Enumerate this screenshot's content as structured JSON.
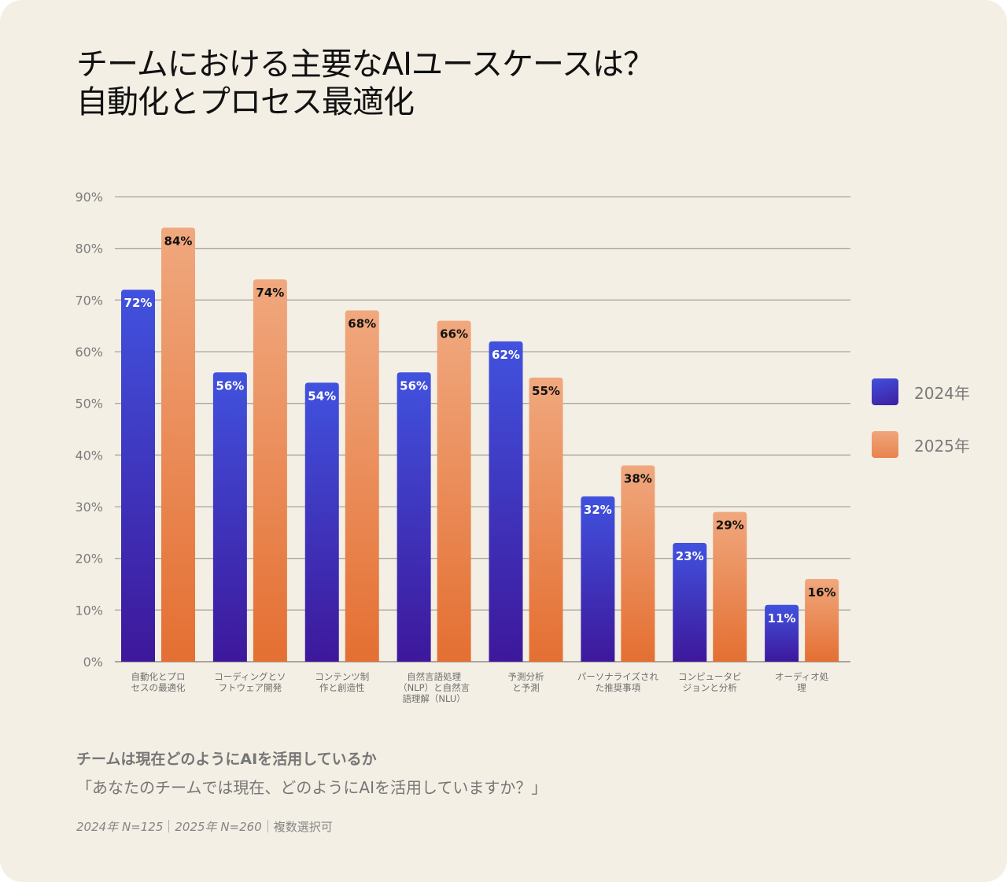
{
  "title": {
    "line1": "チームにおける主要なAIユースケースは？",
    "line2": "自動化とプロセス最適化"
  },
  "colors": {
    "series_2024_top": "#4152de",
    "series_2024_bottom": "#3d189b",
    "series_2025_top": "#f0a87e",
    "series_2025_bottom": "#e46f32",
    "background": "#f4efe5",
    "gridline": "#a9a6a0",
    "axis_text": "#7a7a7a"
  },
  "chart_data": {
    "type": "bar",
    "title": "チームにおける主要なAIユースケースは？自動化とプロセス最適化",
    "xlabel": "",
    "ylabel": "",
    "ylim": [
      0,
      90
    ],
    "yticks": [
      0,
      10,
      20,
      30,
      40,
      50,
      60,
      70,
      80,
      90
    ],
    "ytick_labels": [
      "0%",
      "10%",
      "20%",
      "30%",
      "40%",
      "50%",
      "60%",
      "70%",
      "80%",
      "90%"
    ],
    "grid": true,
    "legend_position": "right",
    "categories": [
      [
        "自動化とプロ",
        "セスの最適化"
      ],
      [
        "コーディングとソ",
        "フトウェア開発"
      ],
      [
        "コンテンツ制",
        "作と創造性"
      ],
      [
        "自然言語処理",
        "（NLP）と自然言",
        "語理解（NLU）"
      ],
      [
        "予測分析",
        "と予測"
      ],
      [
        "パーソナライズされ",
        "た推奨事項"
      ],
      [
        "コンピュータビ",
        "ジョンと分析"
      ],
      [
        "オーディオ処",
        "理"
      ]
    ],
    "series": [
      {
        "name": "2024年",
        "values": [
          72,
          56,
          54,
          56,
          62,
          32,
          23,
          11
        ],
        "labels": [
          "72%",
          "56%",
          "54%",
          "56%",
          "62%",
          "32%",
          "23%",
          "11%"
        ]
      },
      {
        "name": "2025年",
        "values": [
          84,
          74,
          68,
          66,
          55,
          38,
          29,
          16
        ],
        "labels": [
          "84%",
          "74%",
          "68%",
          "66%",
          "55%",
          "38%",
          "29%",
          "16%"
        ]
      }
    ]
  },
  "legend": {
    "items": [
      {
        "label": "2024年"
      },
      {
        "label": "2025年"
      }
    ]
  },
  "footer": {
    "subtitle": "チームは現在どのようにAIを活用しているか",
    "question": "「あなたのチームでは現在、どのようにAIを活用していますか？」",
    "sample_2024": "2024年 N=125",
    "sample_2025": "2025年 N=260",
    "note": "複数選択可"
  }
}
